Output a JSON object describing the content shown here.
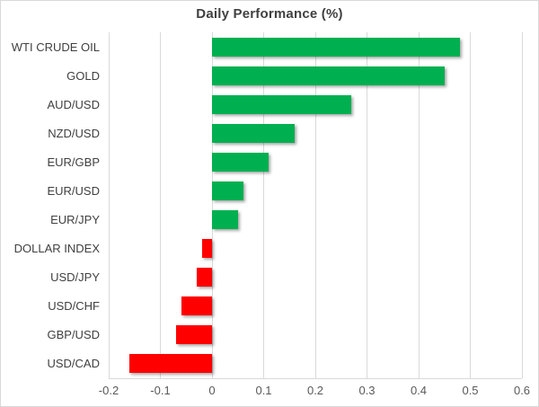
{
  "chart_data": {
    "type": "bar",
    "orientation": "horizontal",
    "title": "Daily Performance (%)",
    "categories": [
      "WTI CRUDE OIL",
      "GOLD",
      "AUD/USD",
      "NZD/USD",
      "EUR/GBP",
      "EUR/USD",
      "EUR/JPY",
      "DOLLAR INDEX",
      "USD/JPY",
      "USD/CHF",
      "GBP/USD",
      "USD/CAD"
    ],
    "values": [
      0.48,
      0.45,
      0.27,
      0.16,
      0.11,
      0.06,
      0.05,
      -0.02,
      -0.03,
      -0.06,
      -0.07,
      -0.16
    ],
    "xlim": [
      -0.2,
      0.6
    ],
    "xticks": [
      -0.2,
      -0.1,
      0,
      0.1,
      0.2,
      0.3,
      0.4,
      0.5,
      0.6
    ],
    "xtick_labels": [
      "-0.2",
      "-0.1",
      "0",
      "0.1",
      "0.2",
      "0.3",
      "0.4",
      "0.5",
      "0.6"
    ],
    "grid": true,
    "legend": false,
    "xlabel": "",
    "ylabel": "",
    "positive_color": "#00B050",
    "negative_color": "#FF0000"
  },
  "colors": {
    "grid": "#d9d9d9",
    "category_label": "#404040",
    "tick_label": "#595959",
    "title": "#404040",
    "background": "#ffffff",
    "frame_border": "#d9d9d9"
  }
}
